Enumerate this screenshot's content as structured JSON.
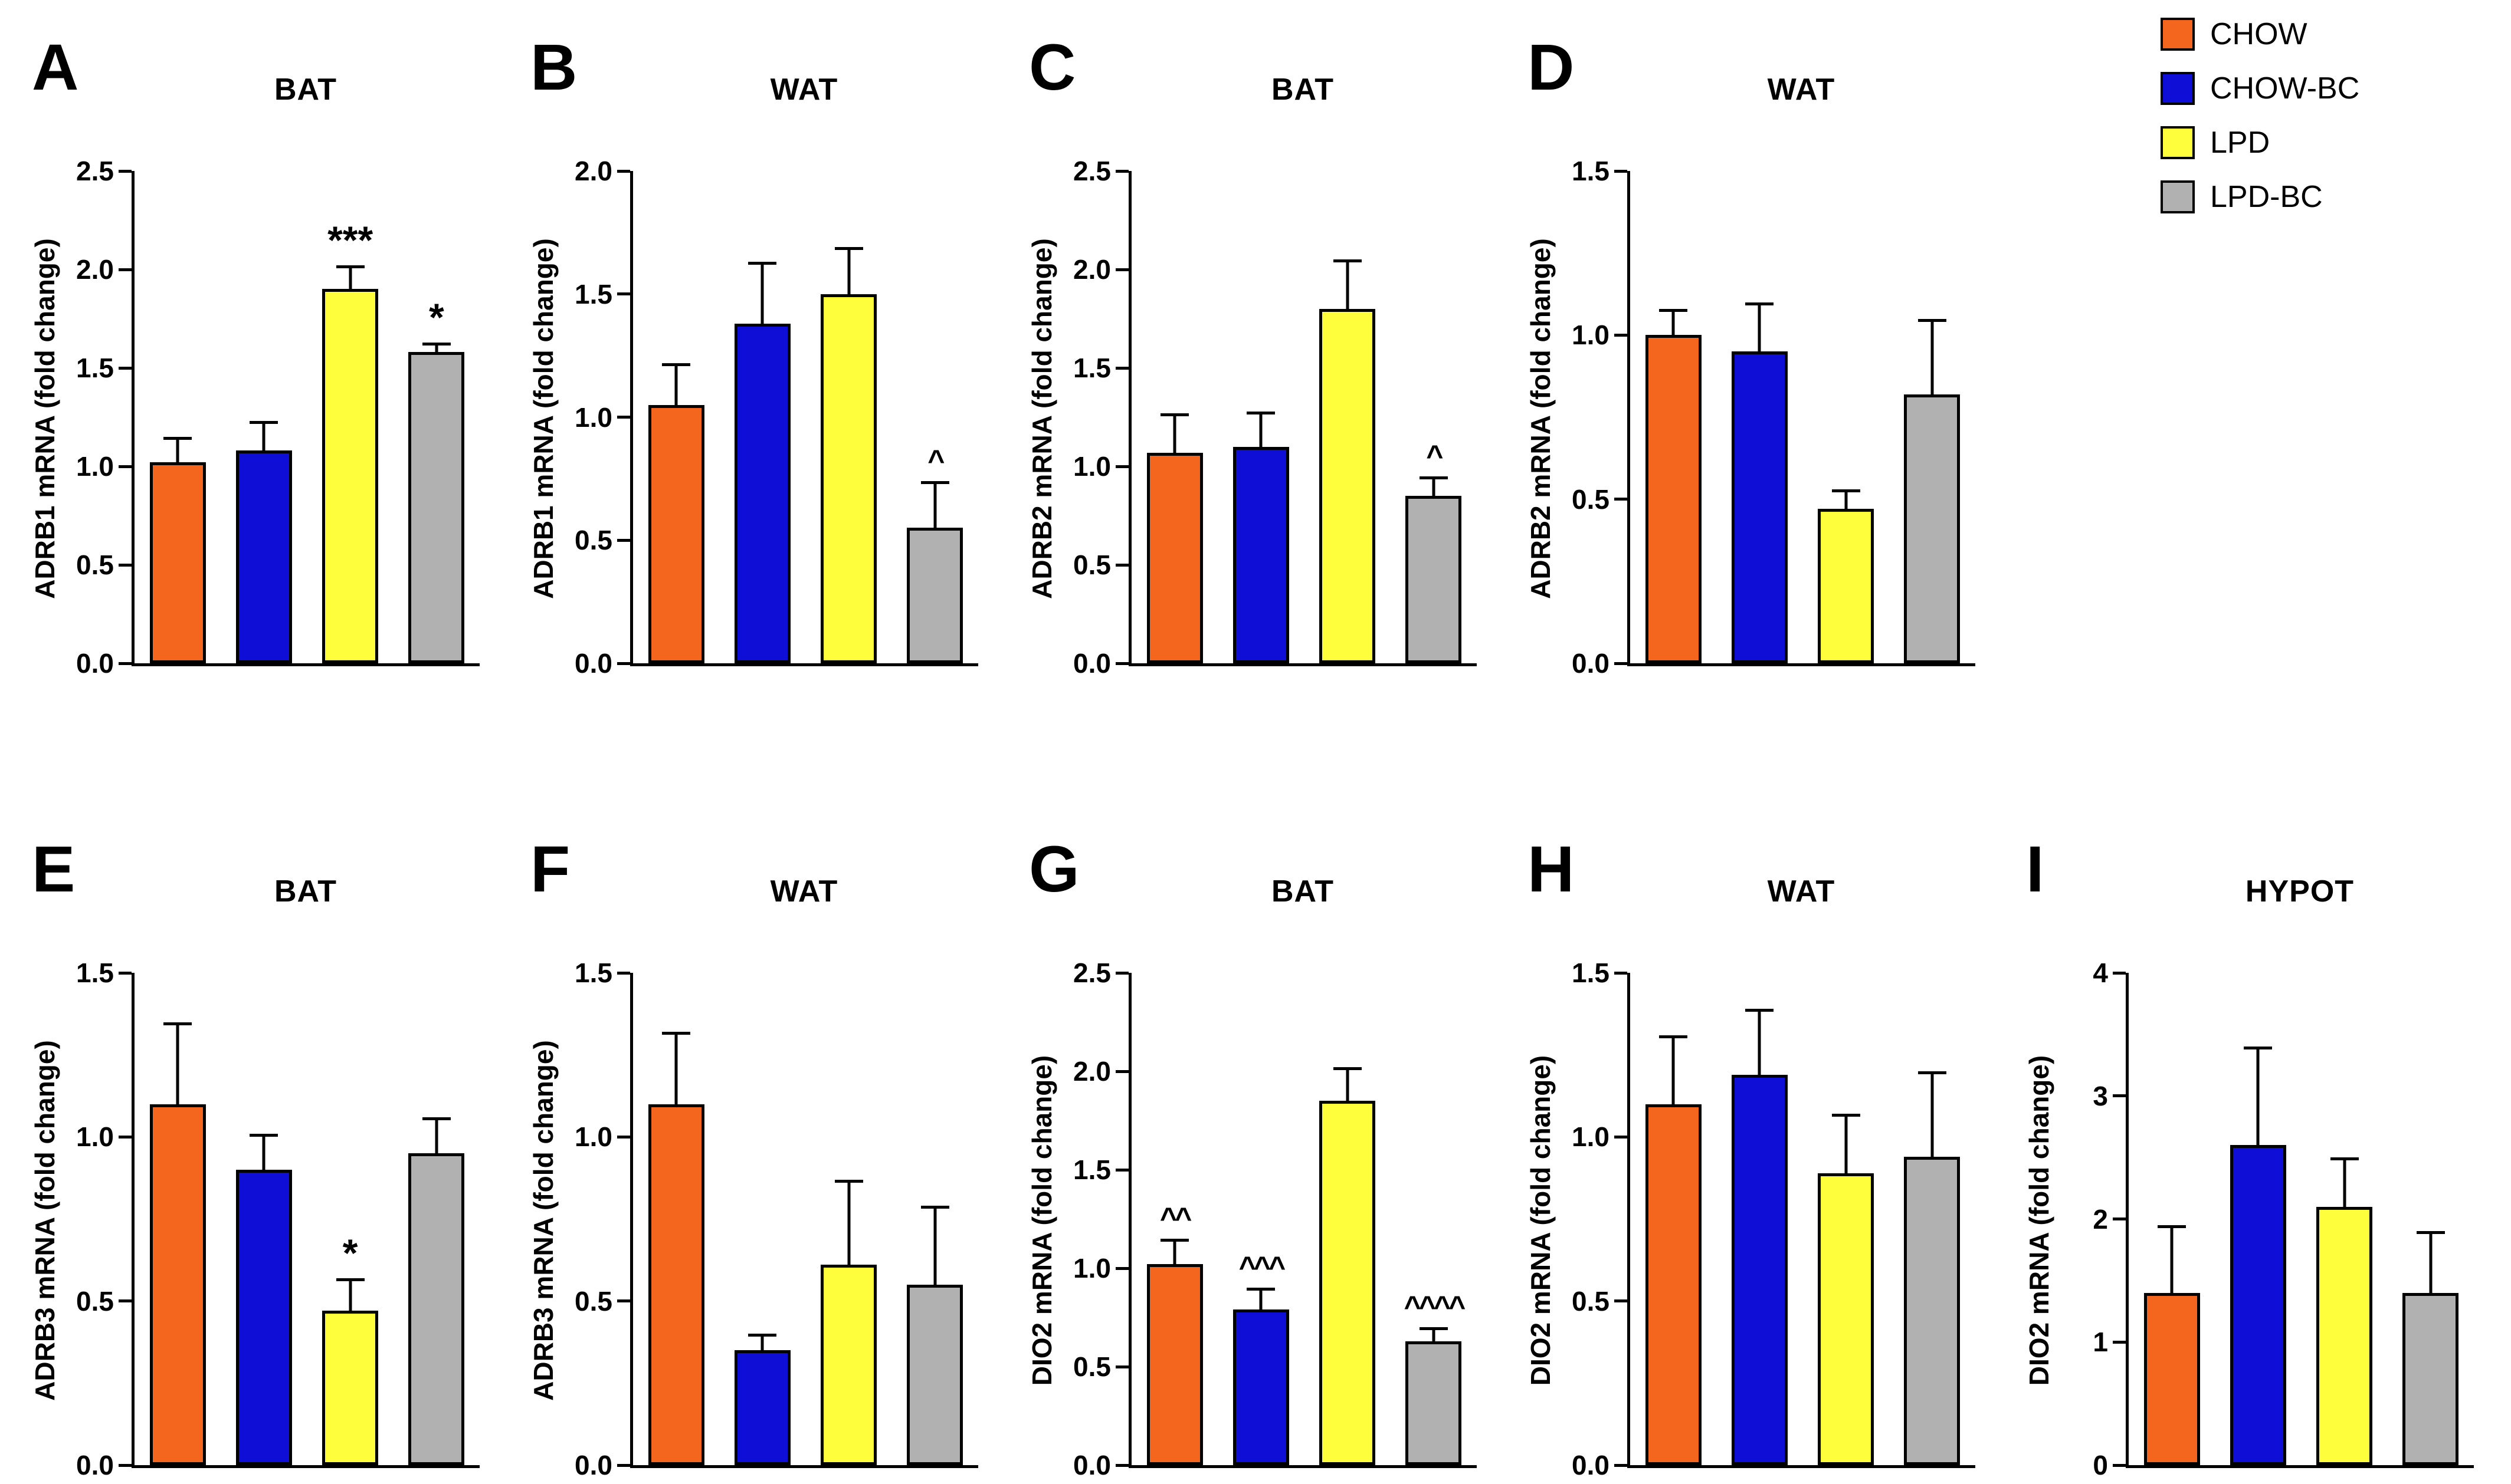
{
  "figure": {
    "background": "#FFFFFF",
    "description_visible_text_only": true
  },
  "legend": {
    "position": "top-right",
    "entries": [
      {
        "label": "CHOW",
        "color": "#F4661D"
      },
      {
        "label": "CHOW-BC",
        "color": "#0E0ED6"
      },
      {
        "label": "LPD",
        "color": "#FEFE3C"
      },
      {
        "label": "LPD-BC",
        "color": "#B1B1B1"
      }
    ]
  },
  "groups": [
    "CHOW",
    "CHOW-BC",
    "LPD",
    "LPD-BC"
  ],
  "chart_data": [
    {
      "panel": "A",
      "type": "bar",
      "title": "BAT",
      "ylabel": "ADRB1 mRNA (fold change)",
      "ylim": [
        0,
        2.5
      ],
      "yticks": [
        "0.0",
        "0.5",
        "1.0",
        "1.5",
        "2.0",
        "2.5"
      ],
      "categories": [
        "CHOW",
        "CHOW-BC",
        "LPD",
        "LPD-BC"
      ],
      "values": [
        1.02,
        1.08,
        1.9,
        1.58
      ],
      "errors": [
        0.13,
        0.15,
        0.12,
        0.05
      ],
      "annotations": [
        "",
        "",
        "***",
        "*"
      ],
      "grid": false
    },
    {
      "panel": "B",
      "type": "bar",
      "title": "WAT",
      "ylabel": "ADRB1 mRNA (fold change)",
      "ylim": [
        0,
        2.0
      ],
      "yticks": [
        "0.0",
        "0.5",
        "1.0",
        "1.5",
        "2.0"
      ],
      "categories": [
        "CHOW",
        "CHOW-BC",
        "LPD",
        "LPD-BC"
      ],
      "values": [
        1.05,
        1.38,
        1.5,
        0.55
      ],
      "errors": [
        0.17,
        0.25,
        0.19,
        0.19
      ],
      "annotations": [
        "",
        "",
        "",
        "^"
      ],
      "grid": false
    },
    {
      "panel": "C",
      "type": "bar",
      "title": "BAT",
      "ylabel": "ADRB2 mRNA (fold change)",
      "ylim": [
        0,
        2.5
      ],
      "yticks": [
        "0.0",
        "0.5",
        "1.0",
        "1.5",
        "2.0",
        "2.5"
      ],
      "categories": [
        "CHOW",
        "CHOW-BC",
        "LPD",
        "LPD-BC"
      ],
      "values": [
        1.07,
        1.1,
        1.8,
        0.85
      ],
      "errors": [
        0.2,
        0.18,
        0.25,
        0.1
      ],
      "annotations": [
        "",
        "",
        "",
        "^"
      ],
      "grid": false
    },
    {
      "panel": "D",
      "type": "bar",
      "title": "WAT",
      "ylabel": "ADRB2 mRNA (fold change)",
      "ylim": [
        0,
        1.5
      ],
      "yticks": [
        "0.0",
        "0.5",
        "1.0",
        "1.5"
      ],
      "categories": [
        "CHOW",
        "CHOW-BC",
        "LPD",
        "LPD-BC"
      ],
      "values": [
        1.0,
        0.95,
        0.47,
        0.82
      ],
      "errors": [
        0.08,
        0.15,
        0.06,
        0.23
      ],
      "annotations": [
        "",
        "",
        "",
        ""
      ],
      "grid": false
    },
    {
      "panel": "E",
      "type": "bar",
      "title": "BAT",
      "ylabel": "ADRB3 mRNA (fold change)",
      "ylim": [
        0,
        1.5
      ],
      "yticks": [
        "0.0",
        "0.5",
        "1.0",
        "1.5"
      ],
      "categories": [
        "CHOW",
        "CHOW-BC",
        "LPD",
        "LPD-BC"
      ],
      "values": [
        1.1,
        0.9,
        0.47,
        0.95
      ],
      "errors": [
        0.25,
        0.11,
        0.1,
        0.11
      ],
      "annotations": [
        "",
        "",
        "*",
        ""
      ],
      "grid": false
    },
    {
      "panel": "F",
      "type": "bar",
      "title": "WAT",
      "ylabel": "ADRB3 mRNA (fold change)",
      "ylim": [
        0,
        1.5
      ],
      "yticks": [
        "0.0",
        "0.5",
        "1.0",
        "1.5"
      ],
      "categories": [
        "CHOW",
        "CHOW-BC",
        "LPD",
        "LPD-BC"
      ],
      "values": [
        1.1,
        0.35,
        0.61,
        0.55
      ],
      "errors": [
        0.22,
        0.05,
        0.26,
        0.24
      ],
      "annotations": [
        "",
        "",
        "",
        ""
      ],
      "grid": false
    },
    {
      "panel": "G",
      "type": "bar",
      "title": "BAT",
      "ylabel": "DIO2 mRNA (fold change)",
      "ylim": [
        0,
        2.5
      ],
      "yticks": [
        "0.0",
        "0.5",
        "1.0",
        "1.5",
        "2.0",
        "2.5"
      ],
      "categories": [
        "CHOW",
        "CHOW-BC",
        "LPD",
        "LPD-BC"
      ],
      "values": [
        1.02,
        0.79,
        1.85,
        0.63
      ],
      "errors": [
        0.13,
        0.11,
        0.17,
        0.07
      ],
      "annotations": [
        "^^",
        "^^^",
        "",
        "^^^^"
      ],
      "grid": false
    },
    {
      "panel": "H",
      "type": "bar",
      "title": "WAT",
      "ylabel": "DIO2 mRNA (fold change)",
      "ylim": [
        0,
        1.5
      ],
      "yticks": [
        "0.0",
        "0.5",
        "1.0",
        "1.5"
      ],
      "categories": [
        "CHOW",
        "CHOW-BC",
        "LPD",
        "LPD-BC"
      ],
      "values": [
        1.1,
        1.19,
        0.89,
        0.94
      ],
      "errors": [
        0.21,
        0.2,
        0.18,
        0.26
      ],
      "annotations": [
        "",
        "",
        "",
        ""
      ],
      "grid": false
    },
    {
      "panel": "I",
      "type": "bar",
      "title": "HYPOT",
      "ylabel": "DIO2 mRNA (fold change)",
      "ylim": [
        0,
        4
      ],
      "yticks": [
        "0",
        "1",
        "2",
        "3",
        "4"
      ],
      "categories": [
        "CHOW",
        "CHOW-BC",
        "LPD",
        "LPD-BC"
      ],
      "values": [
        1.4,
        2.6,
        2.1,
        1.4
      ],
      "errors": [
        0.55,
        0.8,
        0.4,
        0.5
      ],
      "annotations": [
        "",
        "",
        "",
        ""
      ],
      "grid": false
    }
  ]
}
